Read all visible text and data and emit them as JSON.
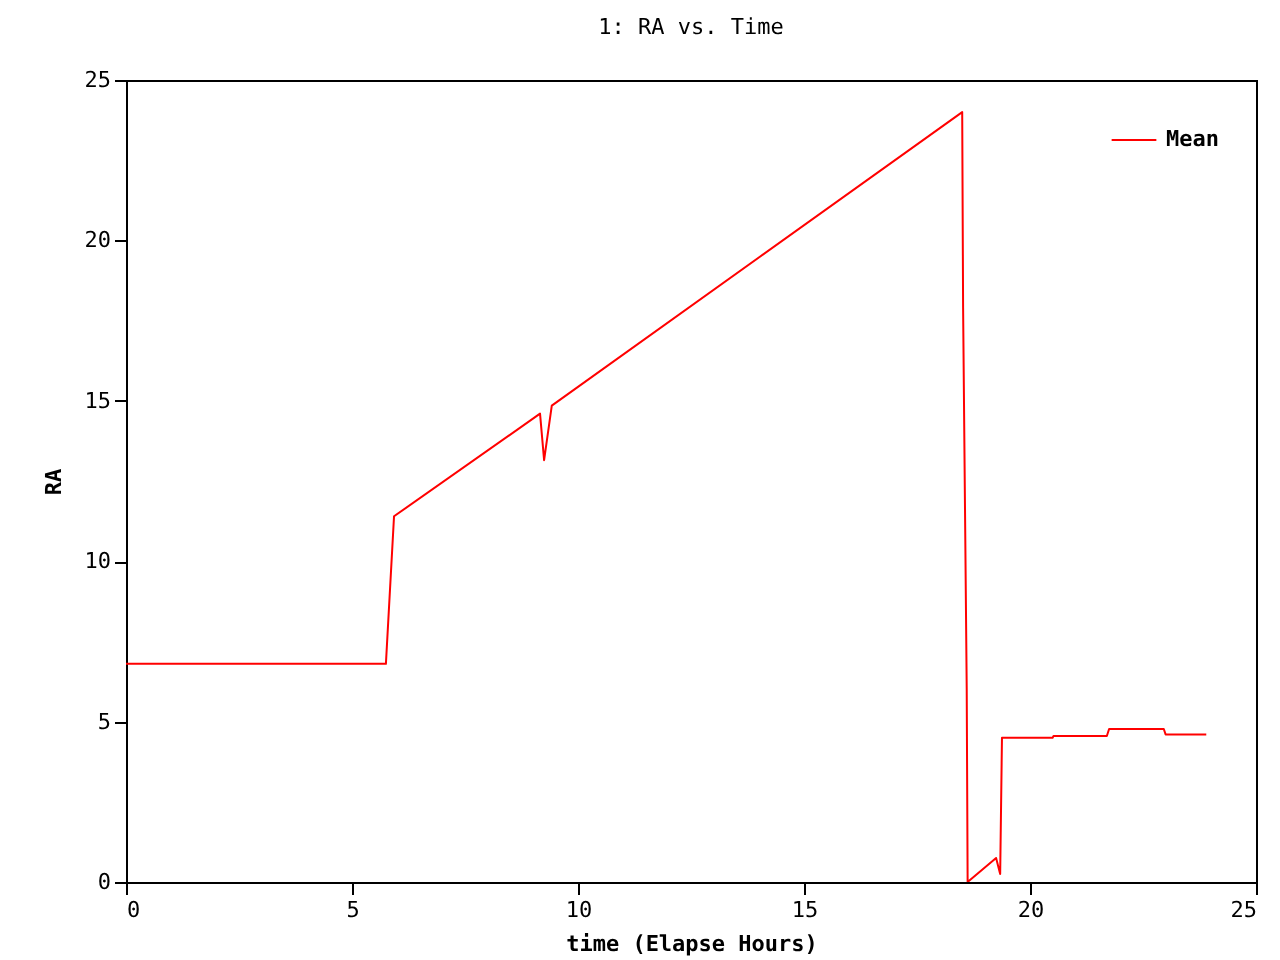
{
  "chart_data": {
    "type": "line",
    "title": "1: RA vs. Time",
    "xlabel": "time (Elapse Hours)",
    "ylabel": "RA",
    "x": [
      0,
      5.75,
      5.93,
      9.16,
      9.25,
      9.42,
      18.5,
      18.52,
      18.6,
      18.62,
      19.25,
      19.34,
      19.38,
      20.5,
      20.52,
      21.7,
      21.75,
      22.96,
      23.0,
      23.9
    ],
    "series": [
      {
        "name": "Mean",
        "color": "#ff0000",
        "values": [
          6.8,
          6.8,
          11.4,
          14.6,
          13.15,
          14.85,
          24.0,
          17.9,
          6.0,
          0,
          0.75,
          0.25,
          4.5,
          4.5,
          4.55,
          4.55,
          4.77,
          4.77,
          4.6,
          4.6
        ]
      }
    ],
    "xlim": [
      0,
      25
    ],
    "ylim": [
      0,
      25
    ],
    "xticks": [
      0,
      5,
      10,
      15,
      20,
      25
    ],
    "yticks": [
      0,
      5,
      10,
      15,
      20,
      25
    ],
    "legend": "top right",
    "grid": false,
    "marker": "none",
    "line_style": "solid"
  }
}
